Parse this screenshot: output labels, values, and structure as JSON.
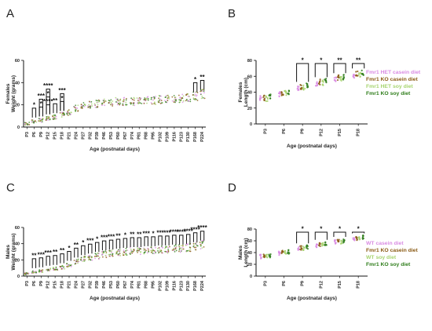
{
  "colors": {
    "het_casein": "#d98be3",
    "ko_casein": "#8a5a14",
    "het_soy": "#a7d46f",
    "ko_soy": "#2e7d1a"
  },
  "chart_data": [
    {
      "panel": "A",
      "type": "scatter",
      "ylabel": "Females\nWeight (grams)",
      "xlabel": "Age (postnatal days)",
      "ylim": [
        0,
        60
      ],
      "yticks": [
        0,
        20,
        40,
        60
      ],
      "categories": [
        "P3",
        "P6",
        "P9",
        "P12",
        "P15",
        "P18",
        "P21",
        "P24",
        "P27",
        "P32",
        "P39",
        "P46",
        "P53",
        "P60",
        "P67",
        "P74",
        "P81",
        "P88",
        "P95",
        "P102",
        "P109",
        "P116",
        "P123",
        "P130",
        "P168",
        "P224"
      ],
      "series": [
        {
          "values": [
            3,
            5,
            6,
            8,
            9,
            11,
            13,
            17,
            19,
            20,
            21,
            22,
            22,
            23,
            23,
            23,
            24,
            24,
            24,
            25,
            25,
            25,
            26,
            26,
            28,
            30
          ]
        }
      ],
      "significance": [
        {
          "category": "P6",
          "label": "*"
        },
        {
          "category": "P9",
          "label": "*"
        },
        {
          "category": "P9",
          "label": "***"
        },
        {
          "category": "P12",
          "label": "****"
        },
        {
          "category": "P12",
          "label": "*"
        },
        {
          "category": "P12",
          "label": "****"
        },
        {
          "category": "P15",
          "label": "**"
        },
        {
          "category": "P18",
          "label": "*"
        },
        {
          "category": "P18",
          "label": "***"
        },
        {
          "category": "P168",
          "label": "*"
        },
        {
          "category": "P224",
          "label": "**"
        }
      ]
    },
    {
      "panel": "B",
      "type": "scatter",
      "ylabel": "Females\nLength (cm)",
      "xlabel": "Age (postnatal days)",
      "ylim": [
        0,
        80
      ],
      "yticks": [
        0,
        20,
        40,
        60,
        80
      ],
      "categories": [
        "P3",
        "P6",
        "P9",
        "P12",
        "P15",
        "P18"
      ],
      "series": [
        {
          "name": "Fmr1 HET casein diet",
          "values": [
            32,
            38,
            45,
            51,
            57,
            61
          ]
        },
        {
          "name": "Fmr1 KO casein diet",
          "values": [
            33,
            39,
            47,
            53,
            58,
            63
          ]
        },
        {
          "name": "Fmr1 HET soy diet",
          "values": [
            32,
            39,
            46,
            52,
            57,
            62
          ]
        },
        {
          "name": "Fmr1 KO soy diet",
          "values": [
            34,
            40,
            48,
            54,
            59,
            65
          ]
        }
      ],
      "significance": [
        {
          "category": "P9",
          "label": "*"
        },
        {
          "category": "P12",
          "label": "*"
        },
        {
          "category": "P15",
          "label": "**"
        },
        {
          "category": "P18",
          "label": "**"
        }
      ]
    },
    {
      "panel": "C",
      "type": "scatter",
      "ylabel": "Males\nWeight (grams)",
      "xlabel": "Age (postnatal days)",
      "ylim": [
        0,
        60
      ],
      "yticks": [
        0,
        20,
        40,
        60
      ],
      "categories": [
        "P3",
        "P6",
        "P9",
        "P12",
        "P15",
        "P18",
        "P21",
        "P24",
        "P27",
        "P32",
        "P39",
        "P46",
        "P53",
        "P60",
        "P67",
        "P74",
        "P81",
        "P88",
        "P95",
        "P102",
        "P109",
        "P116",
        "P123",
        "P130",
        "P168",
        "P224"
      ],
      "series": [
        {
          "values": [
            3,
            5,
            6,
            8,
            9,
            11,
            14,
            18,
            21,
            23,
            25,
            27,
            28,
            29,
            30,
            31,
            31,
            32,
            32,
            33,
            33,
            34,
            34,
            35,
            37,
            39
          ]
        }
      ],
      "significance": [
        {
          "category": "P6",
          "label": "**"
        },
        {
          "category": "P9",
          "label": "***"
        },
        {
          "category": "P12",
          "label": "***"
        },
        {
          "category": "P15",
          "label": "**"
        },
        {
          "category": "P18",
          "label": "**"
        },
        {
          "category": "P21",
          "label": "*"
        },
        {
          "category": "P24",
          "label": "**"
        },
        {
          "category": "P27",
          "label": "*"
        },
        {
          "category": "P32",
          "label": "***"
        },
        {
          "category": "P39",
          "label": "*"
        },
        {
          "category": "P46",
          "label": "***"
        },
        {
          "category": "P53",
          "label": "***"
        },
        {
          "category": "P60",
          "label": "**"
        },
        {
          "category": "P67",
          "label": "*"
        },
        {
          "category": "P74",
          "label": "**"
        },
        {
          "category": "P81",
          "label": "**"
        },
        {
          "category": "P88",
          "label": "***"
        },
        {
          "category": "P95",
          "label": "*"
        },
        {
          "category": "P102",
          "label": "***"
        },
        {
          "category": "P109",
          "label": "***"
        },
        {
          "category": "P116",
          "label": "****"
        },
        {
          "category": "P123",
          "label": "****"
        },
        {
          "category": "P130",
          "label": "****"
        },
        {
          "category": "P168",
          "label": "****"
        },
        {
          "category": "P224",
          "label": "****"
        }
      ]
    },
    {
      "panel": "D",
      "type": "scatter",
      "ylabel": "Males\nLength (cm)",
      "xlabel": "Age (postnatal days)",
      "ylim": [
        0,
        80
      ],
      "yticks": [
        0,
        20,
        40,
        60,
        80
      ],
      "categories": [
        "P3",
        "P6",
        "P9",
        "P12",
        "P15",
        "P18"
      ],
      "series": [
        {
          "name": "WT casein diet",
          "values": [
            33,
            39,
            46,
            52,
            58,
            62
          ]
        },
        {
          "name": "Fmr1 KO casein diet",
          "values": [
            34,
            40,
            48,
            54,
            59,
            64
          ]
        },
        {
          "name": "WT soy diet",
          "values": [
            33,
            40,
            47,
            53,
            58,
            63
          ]
        },
        {
          "name": "Fmr1 KO soy diet",
          "values": [
            35,
            41,
            49,
            55,
            60,
            66
          ]
        }
      ],
      "significance": [
        {
          "category": "P9",
          "label": "*"
        },
        {
          "category": "P12",
          "label": "*"
        },
        {
          "category": "P15",
          "label": "*"
        },
        {
          "category": "P18",
          "label": "*"
        }
      ]
    }
  ],
  "panels": [
    {
      "letter": "A"
    },
    {
      "letter": "B"
    },
    {
      "letter": "C"
    },
    {
      "letter": "D"
    }
  ]
}
